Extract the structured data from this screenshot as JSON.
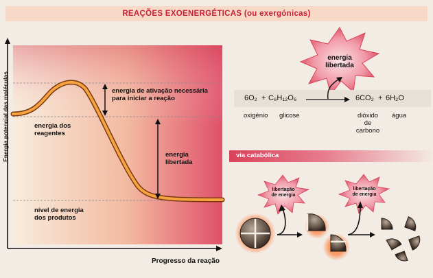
{
  "title": "REAÇÕES EXOENERGÉTICAS (ou exergónicas)",
  "graph": {
    "y_axis_label": "Energia potencial das moléculas",
    "x_axis_label": "Progresso da reação",
    "activation_label_1": "energia de ativação necessária",
    "activation_label_2": "para iniciar a reação",
    "reactants_label_1": "energia dos",
    "reactants_label_2": "reagentes",
    "released_label_1": "energia",
    "released_label_2": "libertada",
    "products_label_1": "nível de energia",
    "products_label_2": "dos produtos"
  },
  "equation": {
    "starburst_1": "energia",
    "starburst_2": "libertada",
    "reactant_1": "6O₂",
    "plus_1": "+",
    "reactant_2": "C₆H₁₂O₆",
    "product_1": "6CO₂",
    "plus_2": "+",
    "product_2": "6H₂O",
    "name_oxygen": "oxigénio",
    "name_glucose": "glicose",
    "name_co2_1": "dióxido",
    "name_co2_2": "de",
    "name_co2_3": "carbono",
    "name_water": "água"
  },
  "catabolic": {
    "label": "via catabólica",
    "burst_1_line1": "libertação",
    "burst_1_line2": "de energia",
    "burst_2_line1": "libertação",
    "burst_2_line2": "de energia"
  }
}
